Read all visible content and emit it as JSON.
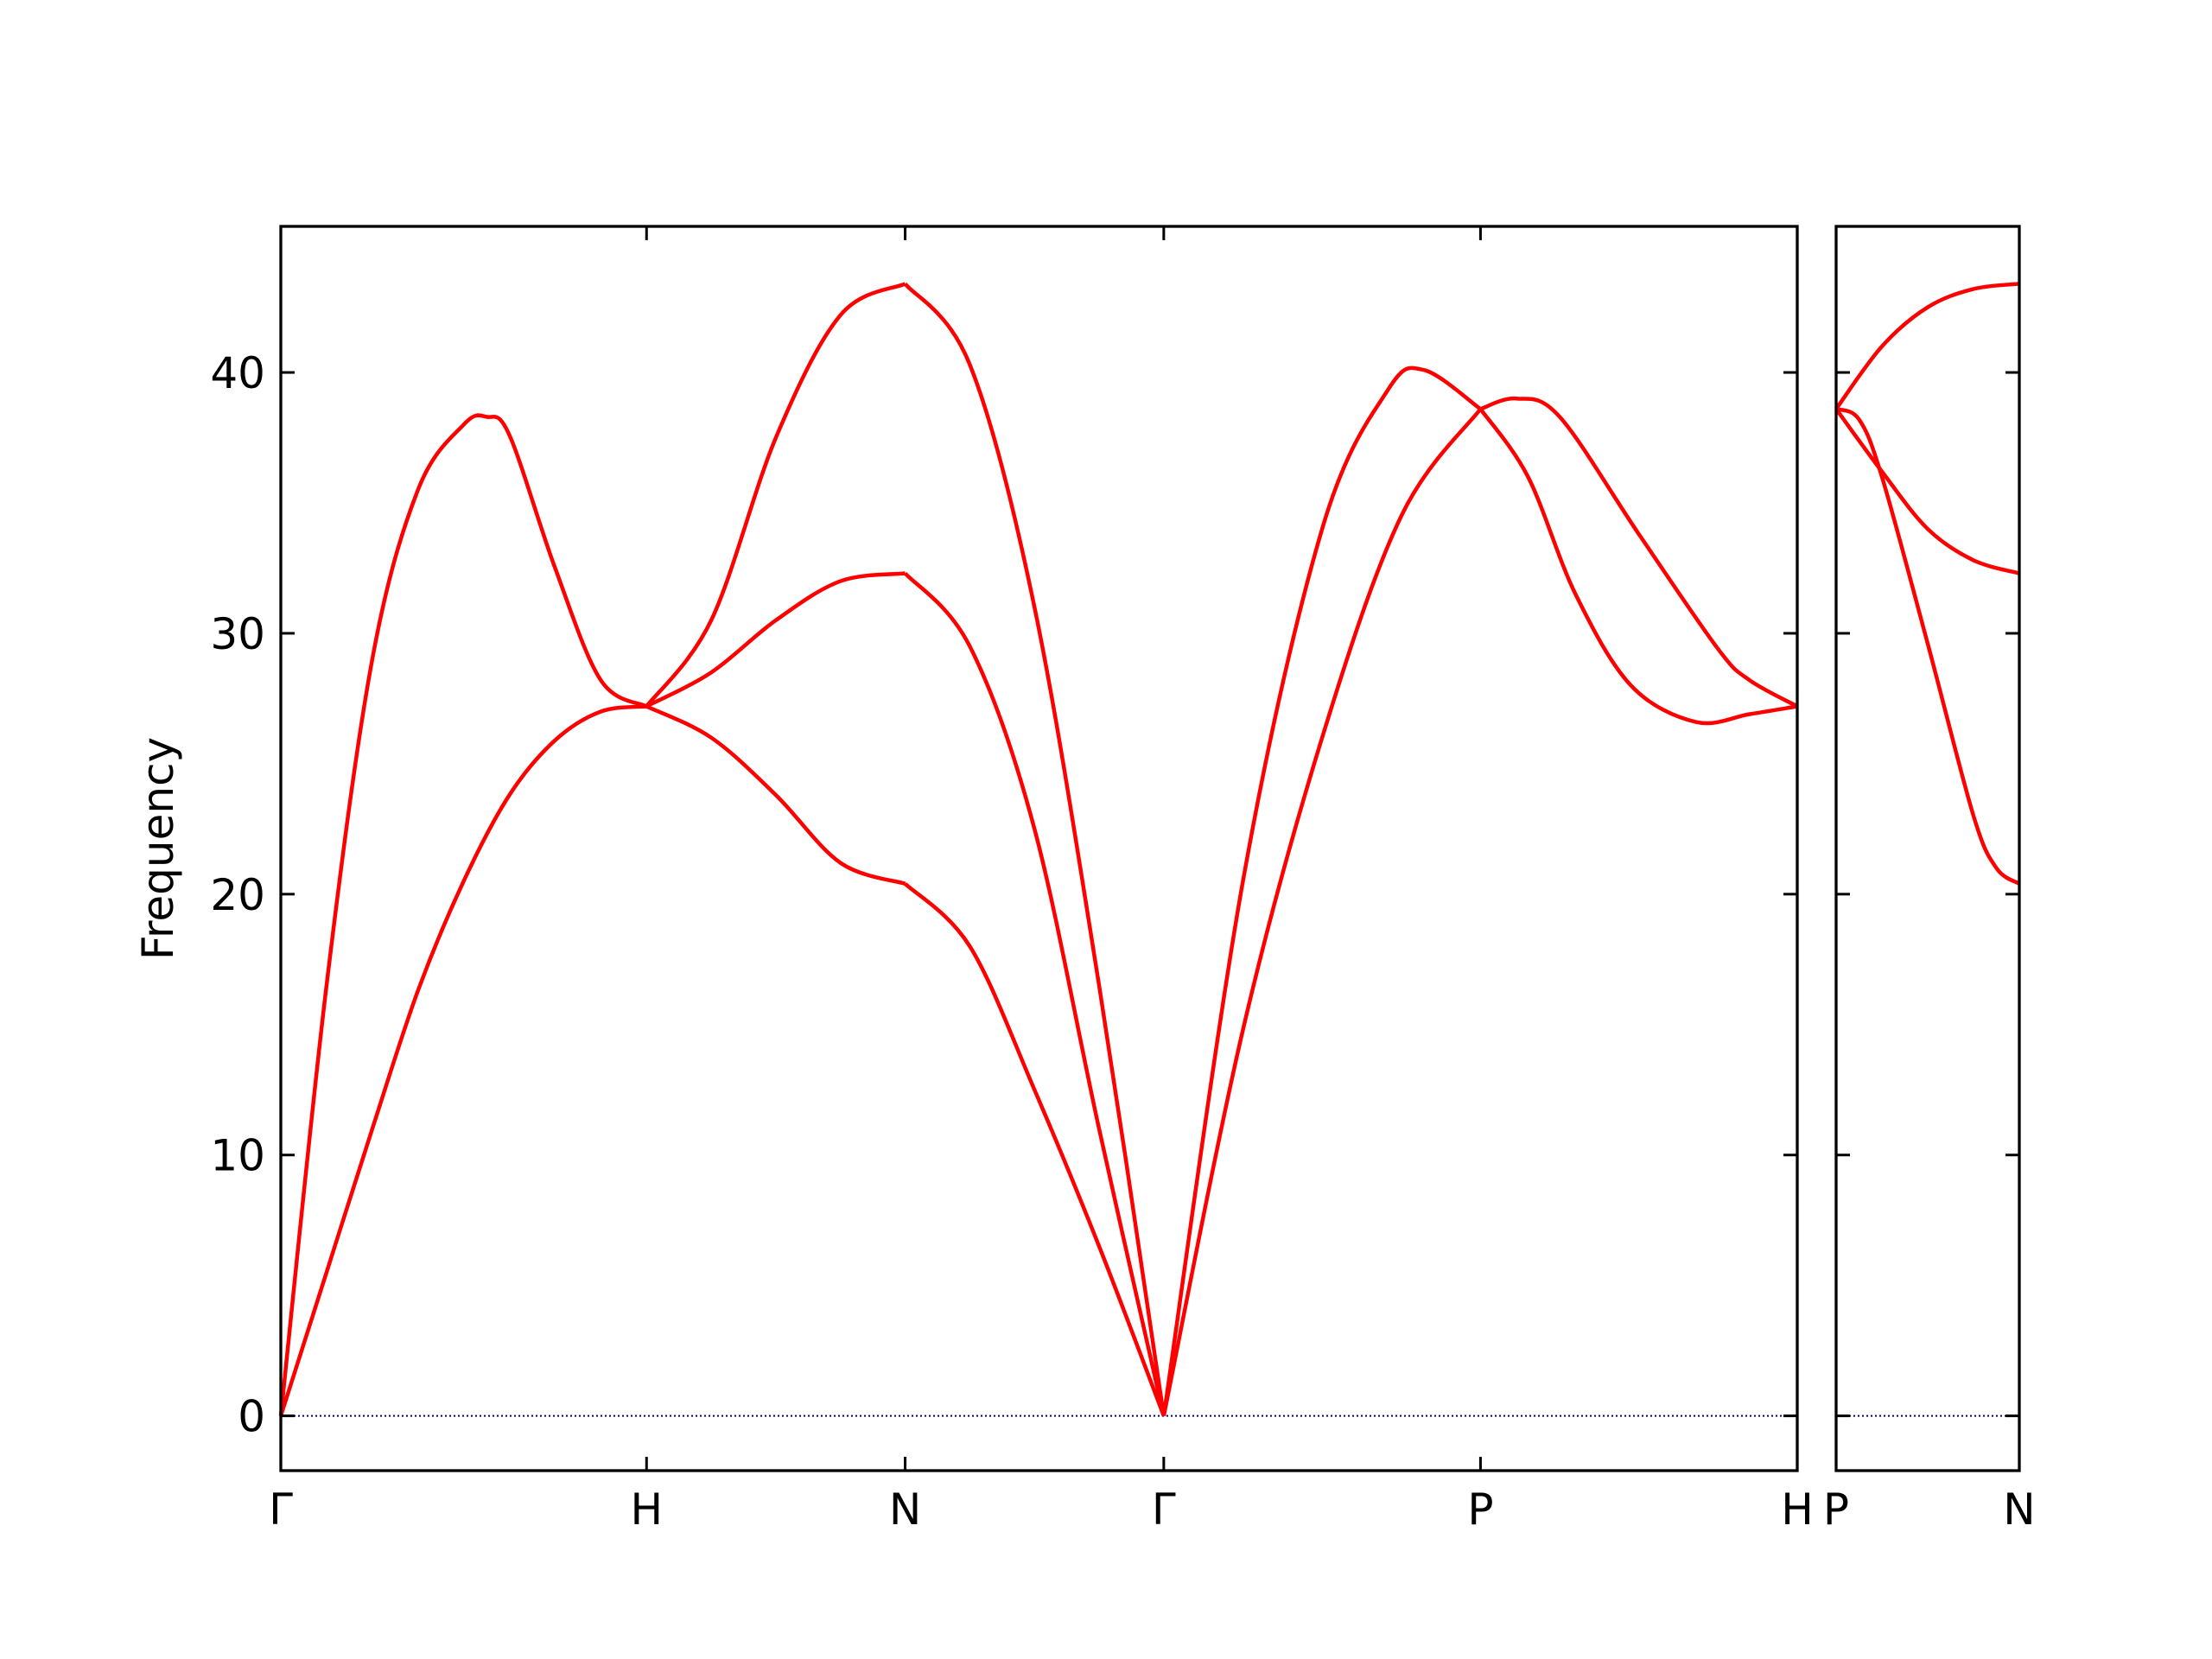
{
  "chart_data": [
    {
      "type": "line",
      "color": "#ff0000",
      "y_label": "Frequency",
      "xlim": [
        0,
        4.1463
      ],
      "ylim": [
        -2.1,
        45.6
      ],
      "xticks": [
        {
          "value": 0,
          "label": "Γ"
        },
        {
          "value": 1,
          "label": "H"
        },
        {
          "value": 1.7071,
          "label": "N"
        },
        {
          "value": 2.4142,
          "label": "Γ"
        },
        {
          "value": 3.2802,
          "label": "P"
        },
        {
          "value": 4.1463,
          "label": "H"
        }
      ],
      "yticks": [
        0,
        10,
        20,
        30,
        40
      ],
      "reference_line": {
        "value": 0,
        "color": "#00008b"
      },
      "series": [
        {
          "x": [
            0,
            0.125,
            0.25,
            0.375,
            0.5,
            0.625,
            0.75,
            0.875,
            1
          ],
          "values": [
            0,
            5.5,
            11,
            16.3,
            20.5,
            23.8,
            25.9,
            27.0,
            27.2
          ]
        },
        {
          "x": [
            0,
            0.125,
            0.25,
            0.375,
            0.5,
            0.5625,
            0.625,
            0.75,
            0.875,
            1
          ],
          "values": [
            0,
            16.5,
            29,
            35.5,
            38,
            38.3,
            37.6,
            32.5,
            28.2,
            27.2
          ]
        },
        {
          "x": [
            1,
            1.1768,
            1.3536,
            1.5303,
            1.7071
          ],
          "values": [
            27.2,
            26.0,
            23.8,
            21.2,
            20.4
          ]
        },
        {
          "x": [
            1,
            1.1768,
            1.3536,
            1.5303,
            1.7071
          ],
          "values": [
            27.2,
            28.5,
            30.5,
            32.0,
            32.3
          ]
        },
        {
          "x": [
            1,
            1.1768,
            1.3536,
            1.5303,
            1.7071
          ],
          "values": [
            27.2,
            30.5,
            37.5,
            42.2,
            43.4
          ]
        },
        {
          "x": [
            1.7071,
            1.8839,
            2.0607,
            2.2374,
            2.4142
          ],
          "values": [
            20.4,
            18.0,
            12.5,
            6.5,
            0
          ]
        },
        {
          "x": [
            1.7071,
            1.8839,
            2.0607,
            2.2374,
            2.4142
          ],
          "values": [
            32.3,
            29.5,
            22.5,
            11,
            0
          ]
        },
        {
          "x": [
            1.7071,
            1.8839,
            2.0607,
            2.2374,
            2.4142
          ],
          "values": [
            43.4,
            40.3,
            31,
            16.5,
            0
          ]
        },
        {
          "x": [
            2.4142,
            2.6307,
            2.8472,
            3.0256,
            3.1243,
            3.2802
          ],
          "values": [
            0,
            20.5,
            34,
            39.3,
            40.1,
            38.6
          ]
        },
        {
          "x": [
            2.4142,
            2.6307,
            2.8472,
            3.0637,
            3.2802
          ],
          "values": [
            0,
            14.8,
            26,
            34.5,
            38.6
          ]
        },
        {
          "x": [
            3.2802,
            3.3781,
            3.4967,
            3.7133,
            3.9298,
            4.0163,
            4.1463
          ],
          "values": [
            38.6,
            39.0,
            38.3,
            33.8,
            29.4,
            28.2,
            27.2
          ]
        },
        {
          "x": [
            3.2802,
            3.4101,
            3.54,
            3.6916,
            3.8691,
            4.0163,
            4.1463
          ],
          "values": [
            38.6,
            36.0,
            31.5,
            28.0,
            26.6,
            26.9,
            27.2
          ]
        }
      ]
    },
    {
      "type": "line",
      "color": "#ff0000",
      "xlim": [
        0,
        0.5
      ],
      "ylim": [
        -2.1,
        45.6
      ],
      "xticks": [
        {
          "value": 0,
          "label": "P"
        },
        {
          "value": 0.5,
          "label": "N"
        }
      ],
      "yticks": [
        0,
        10,
        20,
        30,
        40
      ],
      "reference_line": {
        "value": 0,
        "color": "#00008b"
      },
      "series": [
        {
          "x": [
            0,
            0.125,
            0.25,
            0.375,
            0.5
          ],
          "values": [
            38.6,
            41.0,
            42.5,
            43.2,
            43.4
          ]
        },
        {
          "x": [
            0,
            0.125,
            0.25,
            0.375,
            0.5
          ],
          "values": [
            38.6,
            36.2,
            34.0,
            32.8,
            32.3
          ]
        },
        {
          "x": [
            0,
            0.0625,
            0.125,
            0.25,
            0.375,
            0.4375,
            0.5
          ],
          "values": [
            38.6,
            38.2,
            36.0,
            29.6,
            23.0,
            21.0,
            20.4
          ]
        }
      ]
    }
  ]
}
